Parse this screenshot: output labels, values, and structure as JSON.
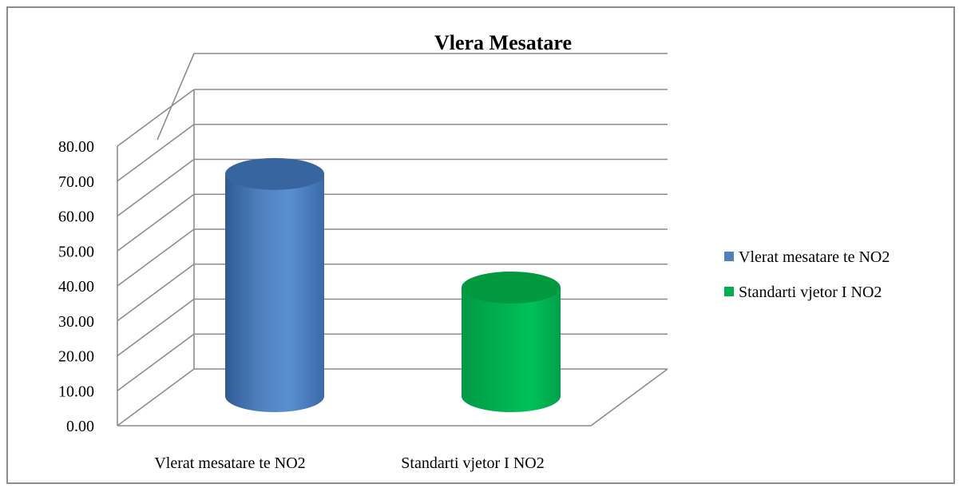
{
  "chart_data": {
    "type": "bar",
    "title": "Vlera Mesatare",
    "categories": [
      "Vlerat mesatare te NO2",
      "Standarti vjetor I NO2"
    ],
    "series": [
      {
        "name": "Vlerat mesatare te NO2",
        "values": [
          72.5,
          null
        ],
        "color": "#4f81bd"
      },
      {
        "name": "Standarti vjetor I NO2",
        "values": [
          null,
          40.0
        ],
        "color": "#00b050"
      }
    ],
    "ylim": [
      0,
      80
    ],
    "ytick_labels": [
      "0.00",
      "10.00",
      "20.00",
      "30.00",
      "40.00",
      "50.00",
      "60.00",
      "70.00",
      "80.00"
    ],
    "grid": true,
    "legend_position": "right",
    "bar_shape": "3d-cylinder",
    "xlabel": "",
    "ylabel": ""
  }
}
